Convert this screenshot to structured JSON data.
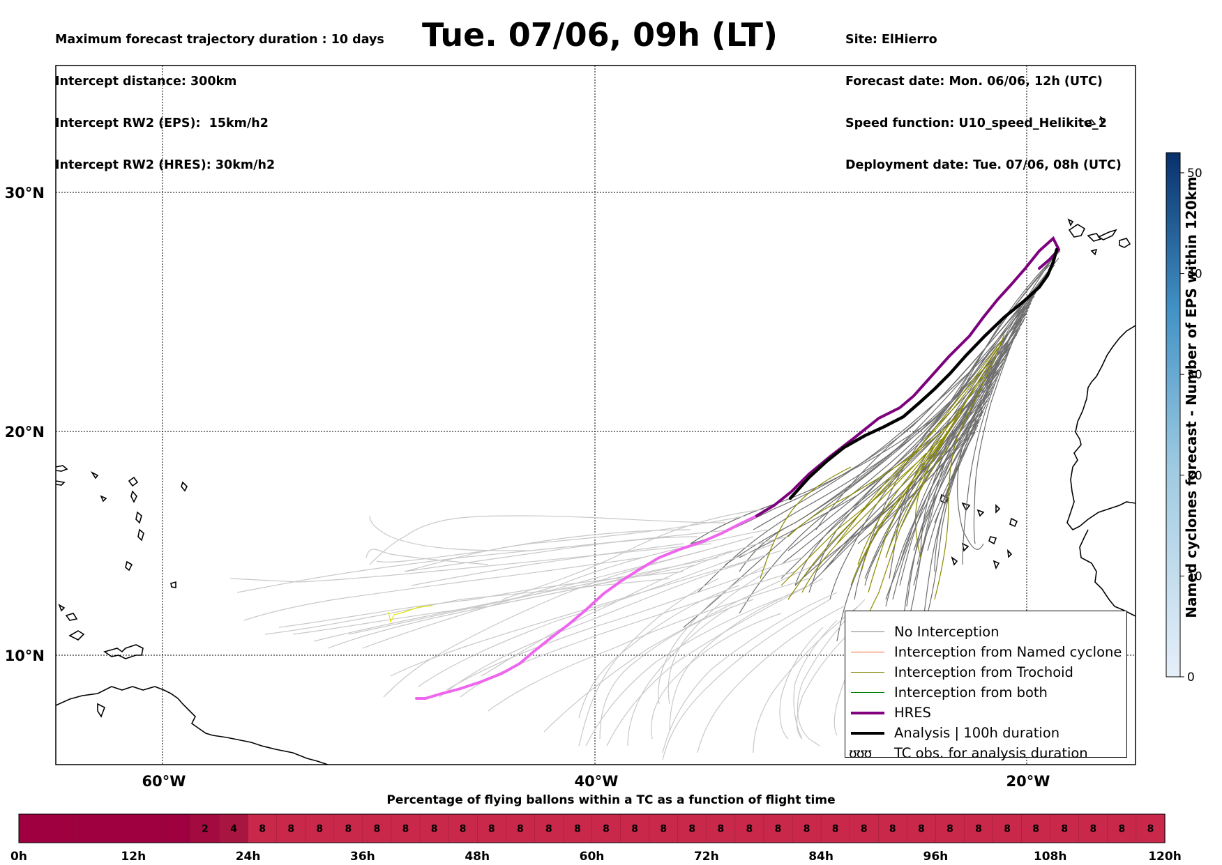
{
  "header": {
    "left_lines": [
      "Maximum forecast trajectory duration : 10 days",
      "Intercept distance: 300km",
      "Intercept RW2 (EPS):  15km/h2",
      "Intercept RW2 (HRES): 30km/h2"
    ],
    "title": "Tue. 07/06, 09h (LT)",
    "right_lines": [
      "Site: ElHierro",
      "Forecast date: Mon. 06/06, 12h (UTC)",
      "Speed function: U10_speed_Helikite_2",
      "Deployment date: Tue. 07/06, 08h (UTC)"
    ]
  },
  "map": {
    "lat_labels": [
      "30°N",
      "20°N",
      "10°N"
    ],
    "lon_labels": [
      "60°W",
      "40°W",
      "20°W"
    ]
  },
  "legend": {
    "items": [
      {
        "label": "No Interception",
        "color": "#808080",
        "style": "line-thin"
      },
      {
        "label": "Interception from Named cyclone",
        "color": "#ff6020",
        "style": "line-thin"
      },
      {
        "label": "Interception from Trochoid",
        "color": "#808000",
        "style": "line-thin"
      },
      {
        "label": "Interception from both",
        "color": "#008000",
        "style": "line-thin"
      },
      {
        "label": "HRES",
        "color": "#800080",
        "style": "line-thick"
      },
      {
        "label": "Analysis | 100h duration",
        "color": "#000000",
        "style": "line-thick"
      },
      {
        "label": "TC obs. for analysis duration",
        "color": "#000000",
        "style": "symbol",
        "symbol": "ʊʊʊ"
      }
    ]
  },
  "colorbar": {
    "label": "Named cyclones forecast - Number of EPS within 120km",
    "ticks": [
      "0",
      "10",
      "20",
      "30",
      "40",
      "50"
    ],
    "min": 0,
    "max": 52,
    "color_low": "#e6eff9",
    "color_high": "#08306b"
  },
  "timebar": {
    "title": "Percentage of flying ballons within a TC as a function of flight time",
    "tick_labels": [
      "0h",
      "12h",
      "24h",
      "36h",
      "48h",
      "60h",
      "72h",
      "84h",
      "96h",
      "108h",
      "120h"
    ],
    "cells": [
      "",
      "",
      "",
      "",
      "",
      "",
      "2",
      "4",
      "8",
      "8",
      "8",
      "8",
      "8",
      "8",
      "8",
      "8",
      "8",
      "8",
      "8",
      "8",
      "8",
      "8",
      "8",
      "8",
      "8",
      "8",
      "8",
      "8",
      "8",
      "8",
      "8",
      "8",
      "8",
      "8",
      "8",
      "8",
      "8",
      "8",
      "8",
      "8"
    ],
    "colors": {
      "0": "#9e0040",
      "2": "#a30a40",
      "4": "#a81540",
      "8": "#c9284b"
    }
  }
}
